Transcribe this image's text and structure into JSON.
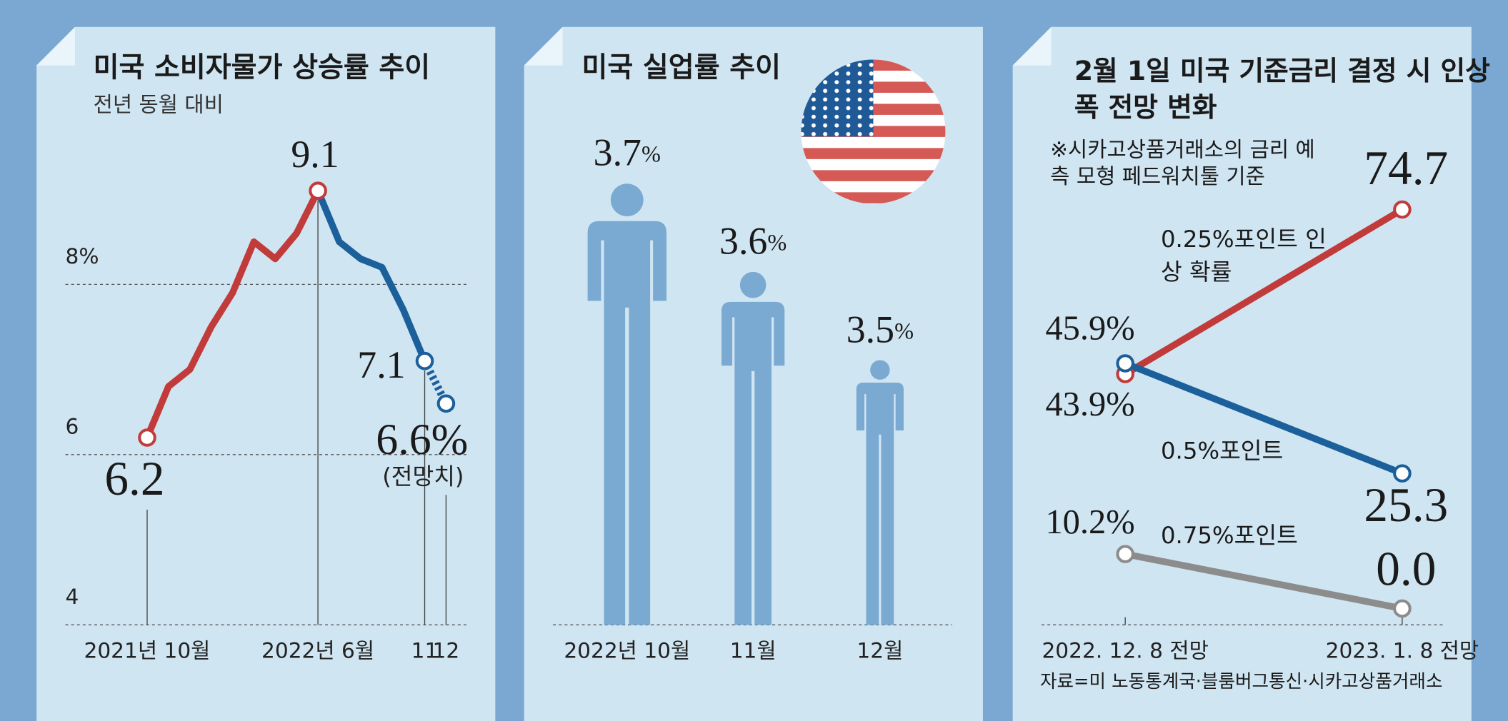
{
  "chart_data": [
    {
      "type": "line",
      "title": "미국 소비자물가 상승률 추이",
      "subtitle": "전년 동월 대비",
      "categories": [
        "2021년 10월",
        null,
        null,
        null,
        null,
        null,
        null,
        null,
        "2022년 6월",
        null,
        null,
        null,
        null,
        "11",
        "12"
      ],
      "series": [
        {
          "color": "#c23b3b",
          "values": [
            6.2,
            6.8,
            7.0,
            7.5,
            7.9,
            8.5,
            8.3,
            8.6,
            9.1,
            null,
            null,
            null,
            null,
            null,
            null
          ],
          "value_labels": [
            "6.2",
            null,
            null,
            null,
            null,
            null,
            null,
            null,
            "9.1",
            null,
            null,
            null,
            null,
            null,
            null
          ]
        },
        {
          "color": "#1b5f9b",
          "values": [
            null,
            null,
            null,
            null,
            null,
            null,
            null,
            null,
            9.1,
            8.5,
            8.3,
            8.2,
            7.7,
            7.1,
            null
          ],
          "value_labels": [
            null,
            null,
            null,
            null,
            null,
            null,
            null,
            null,
            null,
            null,
            null,
            null,
            null,
            "7.1",
            null
          ]
        },
        {
          "color": "#1b5f9b",
          "dashed": true,
          "values": [
            null,
            null,
            null,
            null,
            null,
            null,
            null,
            null,
            null,
            null,
            null,
            null,
            null,
            7.1,
            6.6
          ],
          "value_labels": [
            null,
            null,
            null,
            null,
            null,
            null,
            null,
            null,
            null,
            null,
            null,
            null,
            null,
            null,
            "6.6%"
          ]
        }
      ],
      "annotation": "(전망치)",
      "ylim": [
        4,
        9.5
      ],
      "yticks": [
        4,
        6,
        {
          "value": 8,
          "label": "8%"
        }
      ],
      "grid": true
    },
    {
      "type": "pictogram",
      "title": "미국 실업률 추이",
      "categories": [
        "2022년 10월",
        "11월",
        "12월"
      ],
      "values": [
        3.7,
        3.6,
        3.5
      ],
      "unit": "%",
      "ylim": [
        3.2,
        3.7
      ],
      "color": "#7aaad2"
    },
    {
      "type": "slope",
      "title": "2월 1일 미국 기준금리 결정 시 인상 폭 전망 변화",
      "note": "※시카고상품거래소의 금리 예측 모형 페드워치툴 기준",
      "categories": [
        "2022. 12. 8 전망",
        "2023. 1. 8 전망"
      ],
      "series": [
        {
          "name": "0.25%포인트 인상 확률",
          "color": "#c23b3b",
          "values": [
            43.9,
            74.7
          ],
          "value_labels": [
            "43.9%",
            "74.7"
          ]
        },
        {
          "name": "0.5%포인트",
          "color": "#1b5f9b",
          "values": [
            45.9,
            25.3
          ],
          "value_labels": [
            "45.9%",
            "25.3"
          ]
        },
        {
          "name": "0.75%포인트",
          "color": "#8c8c8c",
          "values": [
            10.2,
            0
          ],
          "value_labels": [
            "10.2%",
            "0.0"
          ]
        }
      ],
      "ylim": [
        0,
        80
      ]
    }
  ],
  "source": "자료=미 노동통계국·블룸버그통신·시카고상품거래소"
}
